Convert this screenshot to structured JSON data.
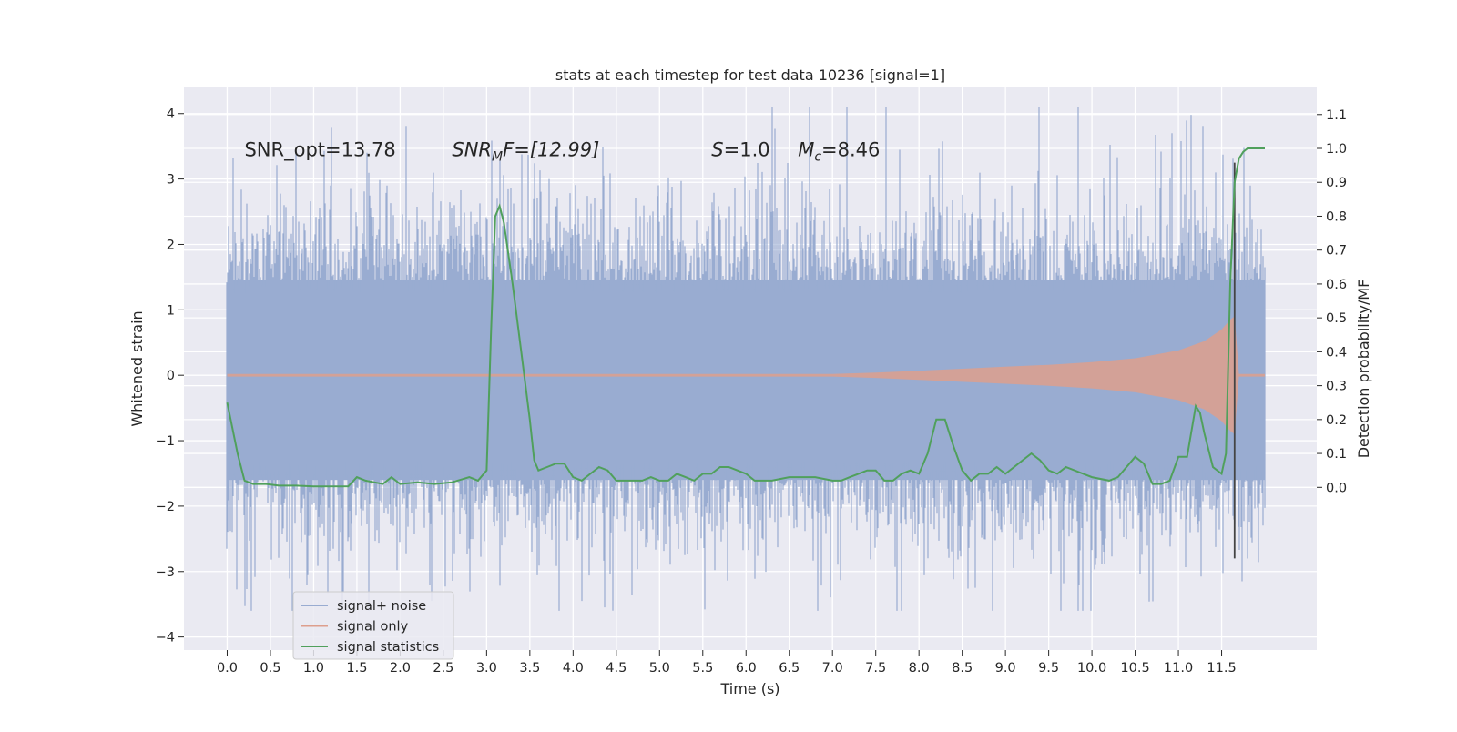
{
  "chart_data": {
    "type": "line",
    "title": "stats at each timestep for test data 10236 [signal=1]",
    "xlabel": "Time (s)",
    "ylabel": "Whitened strain",
    "ylabel_right": "Detection probability/MF",
    "xlim": [
      -0.5,
      12.6
    ],
    "ylim": [
      -4.2,
      4.4
    ],
    "ylim_right": [
      -0.48,
      1.18
    ],
    "x_ticks": [
      0.0,
      0.5,
      1.0,
      1.5,
      2.0,
      2.5,
      3.0,
      3.5,
      4.0,
      4.5,
      5.0,
      5.5,
      6.0,
      6.5,
      7.0,
      7.5,
      8.0,
      8.5,
      9.0,
      9.5,
      10.0,
      10.5,
      11.0,
      11.5
    ],
    "x_tick_labels": [
      "0.0",
      "0.5",
      "1.0",
      "1.5",
      "2.0",
      "2.5",
      "3.0",
      "3.5",
      "4.0",
      "4.5",
      "5.0",
      "5.5",
      "6.0",
      "6.5",
      "7.0",
      "7.5",
      "8.0",
      "8.5",
      "9.0",
      "9.5",
      "10.0",
      "10.5",
      "11.0",
      "11.5"
    ],
    "y_ticks": [
      -4,
      -3,
      -2,
      -1,
      0,
      1,
      2,
      3,
      4
    ],
    "y_tick_labels": [
      "−4",
      "−3",
      "−2",
      "−1",
      "0",
      "1",
      "2",
      "3",
      "4"
    ],
    "y_ticks_right": [
      0.0,
      0.1,
      0.2,
      0.3,
      0.4,
      0.5,
      0.6,
      0.7,
      0.8,
      0.9,
      1.0,
      1.1
    ],
    "y_tick_labels_right": [
      "0.0",
      "0.1",
      "0.2",
      "0.3",
      "0.4",
      "0.5",
      "0.6",
      "0.7",
      "0.8",
      "0.9",
      "1.0",
      "1.1"
    ],
    "grid": true,
    "legend_position": "lower-left",
    "series": [
      {
        "name": "signal+ noise",
        "axis": "left",
        "color": "#99acd1",
        "description": "dense whitened noise band, roughly ±1.4 core with spikes to about ±3.5",
        "x_range": [
          0.0,
          12.0
        ],
        "band_core": [
          -1.6,
          1.45
        ],
        "band_spikes_max": [
          -3.6,
          4.1
        ]
      },
      {
        "name": "signal only",
        "axis": "left",
        "color": "#dd9f8d",
        "description": "chirp envelope, flat near 0 then growing to about ±0.85 before merger near t=11.65",
        "envelope": {
          "x": [
            0.0,
            7.0,
            7.5,
            8.0,
            8.5,
            9.0,
            9.5,
            10.0,
            10.5,
            11.0,
            11.3,
            11.5,
            11.6,
            11.65,
            11.7,
            12.0
          ],
          "amp": [
            0.02,
            0.02,
            0.04,
            0.07,
            0.1,
            0.13,
            0.16,
            0.2,
            0.26,
            0.38,
            0.52,
            0.7,
            0.85,
            0.9,
            0.02,
            0.02
          ]
        }
      },
      {
        "name": "signal statistics",
        "axis": "right",
        "color": "#50a05c",
        "x": [
          0.0,
          0.12,
          0.2,
          0.3,
          0.45,
          0.6,
          0.8,
          1.0,
          1.2,
          1.4,
          1.5,
          1.6,
          1.8,
          1.9,
          2.0,
          2.2,
          2.4,
          2.6,
          2.8,
          2.9,
          3.0,
          3.05,
          3.1,
          3.15,
          3.2,
          3.3,
          3.4,
          3.5,
          3.55,
          3.6,
          3.7,
          3.8,
          3.9,
          4.0,
          4.1,
          4.2,
          4.3,
          4.4,
          4.5,
          4.6,
          4.8,
          4.9,
          5.0,
          5.1,
          5.2,
          5.3,
          5.4,
          5.5,
          5.6,
          5.7,
          5.8,
          5.9,
          6.0,
          6.1,
          6.2,
          6.3,
          6.5,
          6.8,
          7.0,
          7.1,
          7.2,
          7.3,
          7.4,
          7.5,
          7.6,
          7.7,
          7.8,
          7.9,
          8.0,
          8.1,
          8.2,
          8.3,
          8.4,
          8.5,
          8.6,
          8.7,
          8.8,
          8.9,
          9.0,
          9.1,
          9.2,
          9.3,
          9.4,
          9.5,
          9.6,
          9.7,
          9.8,
          9.9,
          10.0,
          10.2,
          10.3,
          10.4,
          10.5,
          10.6,
          10.7,
          10.8,
          10.9,
          11.0,
          11.1,
          11.2,
          11.25,
          11.3,
          11.4,
          11.5,
          11.55,
          11.6,
          11.65,
          11.7,
          11.75,
          11.8,
          11.9,
          12.0
        ],
        "values": [
          0.25,
          0.1,
          0.02,
          0.01,
          0.01,
          0.005,
          0.005,
          0.003,
          0.003,
          0.003,
          0.03,
          0.02,
          0.01,
          0.03,
          0.01,
          0.015,
          0.01,
          0.015,
          0.03,
          0.02,
          0.05,
          0.45,
          0.8,
          0.83,
          0.78,
          0.6,
          0.4,
          0.2,
          0.08,
          0.05,
          0.06,
          0.07,
          0.07,
          0.03,
          0.02,
          0.04,
          0.06,
          0.05,
          0.02,
          0.02,
          0.02,
          0.03,
          0.02,
          0.02,
          0.04,
          0.03,
          0.02,
          0.04,
          0.04,
          0.06,
          0.06,
          0.05,
          0.04,
          0.02,
          0.02,
          0.02,
          0.03,
          0.03,
          0.02,
          0.02,
          0.03,
          0.04,
          0.05,
          0.05,
          0.02,
          0.02,
          0.04,
          0.05,
          0.04,
          0.1,
          0.2,
          0.2,
          0.12,
          0.05,
          0.02,
          0.04,
          0.04,
          0.06,
          0.04,
          0.06,
          0.08,
          0.1,
          0.08,
          0.05,
          0.04,
          0.06,
          0.05,
          0.04,
          0.03,
          0.02,
          0.03,
          0.06,
          0.09,
          0.07,
          0.01,
          0.01,
          0.02,
          0.09,
          0.09,
          0.24,
          0.22,
          0.16,
          0.06,
          0.04,
          0.1,
          0.6,
          0.9,
          0.97,
          0.99,
          1.0,
          1.0,
          1.0
        ]
      }
    ],
    "merger_marker": {
      "x": 11.65,
      "y_range": [
        -2.8,
        3.25
      ],
      "color": "#444444"
    },
    "annotations": [
      {
        "id": "snr_opt",
        "text": "SNR_opt=13.78",
        "x": 0.2,
        "y": 3.35
      },
      {
        "id": "snr_mf",
        "base": "SNR",
        "sub": "M",
        "after": "F=[12.99]",
        "x": 2.6,
        "y": 3.35
      },
      {
        "id": "s",
        "base": "S",
        "after": "=1.0",
        "x": 5.6,
        "y": 3.35
      },
      {
        "id": "mc",
        "base": "M",
        "sub": "c",
        "after": "=8.46",
        "x": 6.6,
        "y": 3.35
      }
    ]
  }
}
